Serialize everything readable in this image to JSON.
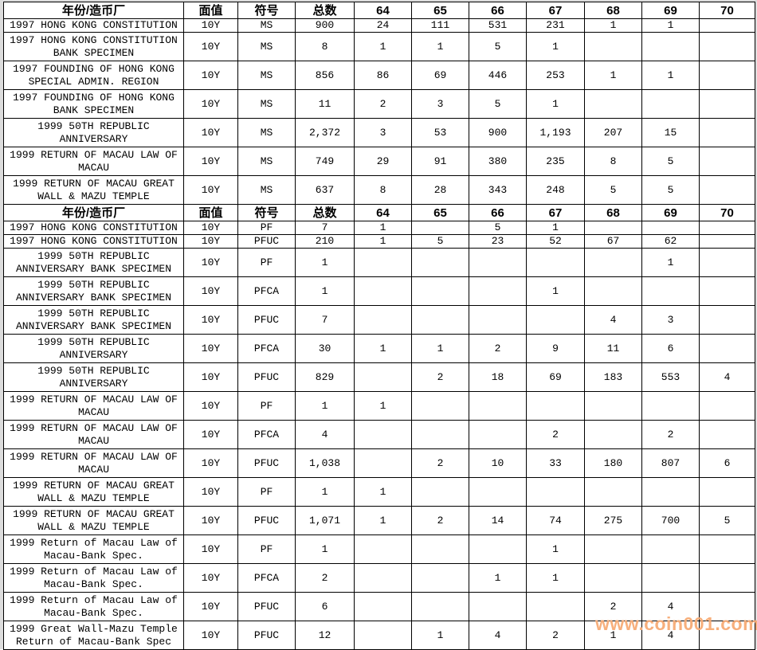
{
  "watermark": "www.coin001.com",
  "colors": {
    "border": "#000000",
    "margin_gray": "#dcdcdc",
    "watermark_orange": "#F7AB76",
    "cell_background": "#ffffff",
    "text": "#000000"
  },
  "table": {
    "headers": [
      "年份/造币厂",
      "面值",
      "符号",
      "总数",
      "64",
      "65",
      "66",
      "67",
      "68",
      "69",
      "70"
    ],
    "sections": [
      {
        "rows": [
          {
            "name": "1997 HONG KONG CONSTITUTION",
            "denom": "10Y",
            "symbol": "MS",
            "total": "900",
            "grades": [
              "24",
              "111",
              "531",
              "231",
              "1",
              "1",
              ""
            ]
          },
          {
            "name": "1997 HONG KONG CONSTITUTION\nBANK SPECIMEN",
            "denom": "10Y",
            "symbol": "MS",
            "total": "8",
            "grades": [
              "1",
              "1",
              "5",
              "1",
              "",
              "",
              ""
            ]
          },
          {
            "name": "1997 FOUNDING OF HONG KONG\nSPECIAL ADMIN. REGION",
            "denom": "10Y",
            "symbol": "MS",
            "total": "856",
            "grades": [
              "86",
              "69",
              "446",
              "253",
              "1",
              "1",
              ""
            ]
          },
          {
            "name": "1997 FOUNDING OF HONG KONG\nBANK SPECIMEN",
            "denom": "10Y",
            "symbol": "MS",
            "total": "11",
            "grades": [
              "2",
              "3",
              "5",
              "1",
              "",
              "",
              ""
            ]
          },
          {
            "name": "1999 50TH REPUBLIC\nANNIVERSARY",
            "denom": "10Y",
            "symbol": "MS",
            "total": "2,372",
            "grades": [
              "3",
              "53",
              "900",
              "1,193",
              "207",
              "15",
              ""
            ]
          },
          {
            "name": "1999 RETURN OF MACAU LAW OF\nMACAU",
            "denom": "10Y",
            "symbol": "MS",
            "total": "749",
            "grades": [
              "29",
              "91",
              "380",
              "235",
              "8",
              "5",
              ""
            ]
          },
          {
            "name": "1999 RETURN OF MACAU GREAT\nWALL & MAZU TEMPLE",
            "denom": "10Y",
            "symbol": "MS",
            "total": "637",
            "grades": [
              "8",
              "28",
              "343",
              "248",
              "5",
              "5",
              ""
            ]
          }
        ]
      },
      {
        "rows": [
          {
            "name": "1997 HONG KONG CONSTITUTION",
            "denom": "10Y",
            "symbol": "PF",
            "total": "7",
            "grades": [
              "1",
              "",
              "5",
              "1",
              "",
              "",
              ""
            ]
          },
          {
            "name": "1997 HONG KONG CONSTITUTION",
            "denom": "10Y",
            "symbol": "PFUC",
            "total": "210",
            "grades": [
              "1",
              "5",
              "23",
              "52",
              "67",
              "62",
              ""
            ]
          },
          {
            "name": "1999 50TH REPUBLIC\nANNIVERSARY BANK SPECIMEN",
            "denom": "10Y",
            "symbol": "PF",
            "total": "1",
            "grades": [
              "",
              "",
              "",
              "",
              "",
              "1",
              ""
            ]
          },
          {
            "name": "1999 50TH REPUBLIC\nANNIVERSARY BANK SPECIMEN",
            "denom": "10Y",
            "symbol": "PFCA",
            "total": "1",
            "grades": [
              "",
              "",
              "",
              "1",
              "",
              "",
              ""
            ]
          },
          {
            "name": "1999 50TH REPUBLIC\nANNIVERSARY BANK SPECIMEN",
            "denom": "10Y",
            "symbol": "PFUC",
            "total": "7",
            "grades": [
              "",
              "",
              "",
              "",
              "4",
              "3",
              ""
            ]
          },
          {
            "name": "1999 50TH REPUBLIC\nANNIVERSARY",
            "denom": "10Y",
            "symbol": "PFCA",
            "total": "30",
            "grades": [
              "1",
              "1",
              "2",
              "9",
              "11",
              "6",
              ""
            ]
          },
          {
            "name": "1999 50TH REPUBLIC\nANNIVERSARY",
            "denom": "10Y",
            "symbol": "PFUC",
            "total": "829",
            "grades": [
              "",
              "2",
              "18",
              "69",
              "183",
              "553",
              "4"
            ]
          },
          {
            "name": "1999 RETURN OF MACAU LAW OF\nMACAU",
            "denom": "10Y",
            "symbol": "PF",
            "total": "1",
            "grades": [
              "1",
              "",
              "",
              "",
              "",
              "",
              ""
            ]
          },
          {
            "name": "1999 RETURN OF MACAU LAW OF\nMACAU",
            "denom": "10Y",
            "symbol": "PFCA",
            "total": "4",
            "grades": [
              "",
              "",
              "",
              "2",
              "",
              "2",
              ""
            ]
          },
          {
            "name": "1999 RETURN OF MACAU LAW OF\nMACAU",
            "denom": "10Y",
            "symbol": "PFUC",
            "total": "1,038",
            "grades": [
              "",
              "2",
              "10",
              "33",
              "180",
              "807",
              "6"
            ]
          },
          {
            "name": "1999 RETURN OF MACAU GREAT\nWALL & MAZU TEMPLE",
            "denom": "10Y",
            "symbol": "PF",
            "total": "1",
            "grades": [
              "1",
              "",
              "",
              "",
              "",
              "",
              ""
            ]
          },
          {
            "name": "1999 RETURN OF MACAU GREAT\nWALL & MAZU TEMPLE",
            "denom": "10Y",
            "symbol": "PFUC",
            "total": "1,071",
            "grades": [
              "1",
              "2",
              "14",
              "74",
              "275",
              "700",
              "5"
            ]
          },
          {
            "name": "1999 Return of Macau Law of\nMacau-Bank Spec.",
            "denom": "10Y",
            "symbol": "PF",
            "total": "1",
            "grades": [
              "",
              "",
              "",
              "1",
              "",
              "",
              ""
            ]
          },
          {
            "name": "1999 Return of Macau Law of\nMacau-Bank Spec.",
            "denom": "10Y",
            "symbol": "PFCA",
            "total": "2",
            "grades": [
              "",
              "",
              "1",
              "1",
              "",
              "",
              ""
            ]
          },
          {
            "name": "1999 Return of Macau Law of\nMacau-Bank Spec.",
            "denom": "10Y",
            "symbol": "PFUC",
            "total": "6",
            "grades": [
              "",
              "",
              "",
              "",
              "2",
              "4",
              ""
            ]
          },
          {
            "name": "1999 Great Wall-Mazu Temple\nReturn of Macau-Bank Spec",
            "denom": "10Y",
            "symbol": "PFUC",
            "total": "12",
            "grades": [
              "",
              "1",
              "4",
              "2",
              "1",
              "4",
              ""
            ]
          }
        ]
      }
    ]
  }
}
